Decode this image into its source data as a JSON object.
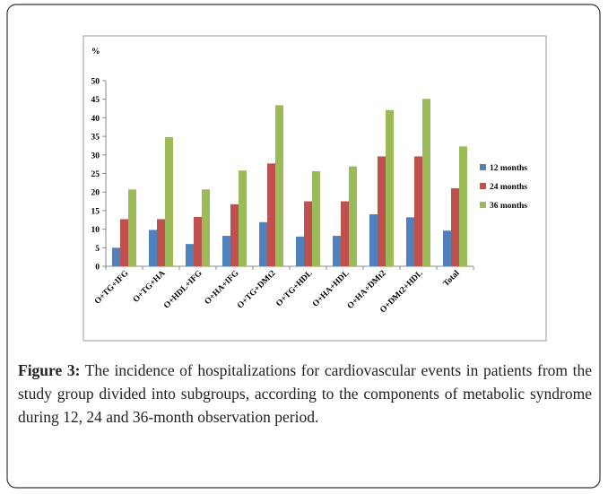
{
  "chart_data": {
    "type": "bar",
    "y_label": "%",
    "categories": [
      "O+TG+IFG",
      "O+TG+HA",
      "O+HDL+IFG",
      "O+HA+IFG",
      "O+TG+DMt2",
      "O+TG+HDL",
      "O+HA+HDL",
      "O+HA+DMt2",
      "O+DMt2+HDL",
      "Total"
    ],
    "series": [
      {
        "name": "12 months",
        "color": "#4f81bd",
        "values": [
          5,
          9.8,
          6,
          8.2,
          11.9,
          8,
          8.2,
          14,
          13.2,
          9.6
        ]
      },
      {
        "name": "24 months",
        "color": "#c0504d",
        "values": [
          12.7,
          12.7,
          13.3,
          16.7,
          27.7,
          17.5,
          17.5,
          29.6,
          29.6,
          21
        ]
      },
      {
        "name": "36 months",
        "color": "#9bbb59",
        "values": [
          20.7,
          34.8,
          20.7,
          25.8,
          43.4,
          25.6,
          26.9,
          42.1,
          45.1,
          32.3
        ]
      }
    ],
    "ylim": [
      0,
      50
    ],
    "yticks": [
      0,
      5,
      10,
      15,
      20,
      25,
      30,
      35,
      40,
      45,
      50
    ],
    "grid": false,
    "legend": "right"
  },
  "caption": {
    "label": "Figure 3:",
    "text": "The incidence of hospitalizations for cardiovascular events in patients from the study group divided into subgroups, according to the components of metabolic syndrome during 12, 24 and 36-month observation period."
  }
}
